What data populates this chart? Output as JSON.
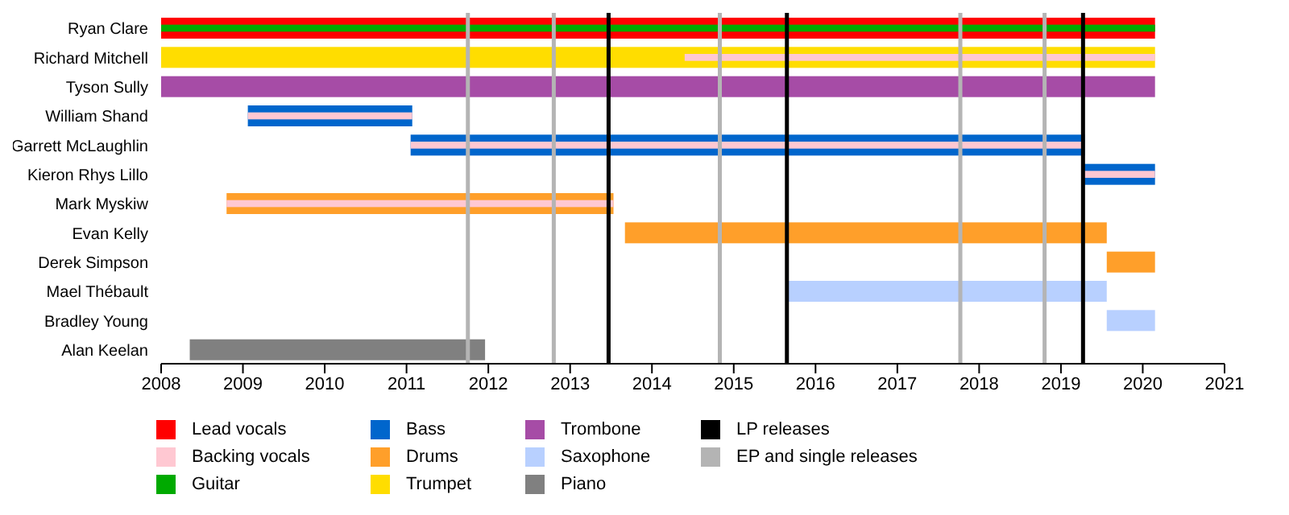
{
  "chart_data": {
    "type": "bar",
    "orientation": "horizontal",
    "categories": [
      "Ryan Clare",
      "Richard Mitchell",
      "Tyson Sully",
      "William Shand",
      "Garrett McLaughlin",
      "Kieron Rhys Lillo",
      "Mark Myskiw",
      "Evan Kelly",
      "Derek Simpson",
      "Mael Thébault",
      "Bradley Young",
      "Alan Keelan"
    ],
    "xlim": [
      2008,
      2021
    ],
    "xticks": [
      2008,
      2009,
      2010,
      2011,
      2012,
      2013,
      2014,
      2015,
      2016,
      2017,
      2018,
      2019,
      2020,
      2021
    ],
    "grid": false,
    "legend": "bottom",
    "series": [
      {
        "name": "Lead vocals",
        "color": "#ff0000",
        "base": [
          2008,
          null,
          null,
          null,
          null,
          null,
          null,
          null,
          null,
          null,
          null,
          null
        ],
        "values": [
          12.15,
          null,
          null,
          null,
          null,
          null,
          null,
          null,
          null,
          null,
          null,
          null
        ]
      },
      {
        "name": "Backing vocals",
        "color": "#ffc8d2",
        "base": [
          null,
          2014.4,
          null,
          2009.06,
          2011.05,
          2019.27,
          2008.8,
          null,
          null,
          null,
          null,
          null
        ],
        "values": [
          null,
          5.75,
          null,
          2.01,
          8.24,
          0.88,
          4.73,
          null,
          null,
          null,
          null,
          null
        ]
      },
      {
        "name": "Guitar",
        "color": "#00aa00",
        "base": [
          2008,
          null,
          null,
          null,
          null,
          null,
          null,
          null,
          null,
          null,
          null,
          null
        ],
        "values": [
          12.15,
          null,
          null,
          null,
          null,
          null,
          null,
          null,
          null,
          null,
          null,
          null
        ]
      },
      {
        "name": "Bass",
        "color": "#0066cc",
        "base": [
          null,
          null,
          null,
          2009.06,
          2011.05,
          2019.27,
          null,
          null,
          null,
          null,
          null,
          null
        ],
        "values": [
          null,
          null,
          null,
          2.01,
          8.24,
          0.88,
          null,
          null,
          null,
          null,
          null,
          null
        ]
      },
      {
        "name": "Drums",
        "color": "#ff9f2a",
        "base": [
          null,
          null,
          null,
          null,
          null,
          null,
          2008.8,
          2013.67,
          2019.56,
          null,
          null,
          null
        ],
        "values": [
          null,
          null,
          null,
          null,
          null,
          null,
          4.73,
          5.89,
          0.59,
          null,
          null,
          null
        ]
      },
      {
        "name": "Trumpet",
        "color": "#ffdd00",
        "base": [
          null,
          2008,
          null,
          null,
          null,
          null,
          null,
          null,
          null,
          null,
          null,
          null
        ],
        "values": [
          null,
          12.15,
          null,
          null,
          null,
          null,
          null,
          null,
          null,
          null,
          null,
          null
        ]
      },
      {
        "name": "Trombone",
        "color": "#a64ca6",
        "base": [
          null,
          null,
          2008,
          null,
          null,
          null,
          null,
          null,
          null,
          null,
          null,
          null
        ],
        "values": [
          null,
          null,
          12.15,
          null,
          null,
          null,
          null,
          null,
          null,
          null,
          null,
          null
        ]
      },
      {
        "name": "Saxophone",
        "color": "#b8d0ff",
        "base": [
          null,
          null,
          null,
          null,
          null,
          null,
          null,
          null,
          null,
          2015.65,
          2019.56,
          null
        ],
        "values": [
          null,
          null,
          null,
          null,
          null,
          null,
          null,
          null,
          null,
          3.91,
          0.59,
          null
        ]
      },
      {
        "name": "Piano",
        "color": "#808080",
        "base": [
          null,
          null,
          null,
          null,
          null,
          null,
          null,
          null,
          null,
          null,
          null,
          2008.35
        ],
        "values": [
          null,
          null,
          null,
          null,
          null,
          null,
          null,
          null,
          null,
          null,
          null,
          3.61
        ]
      }
    ],
    "ref_lines": [
      {
        "axis": "x",
        "value": 2013.47,
        "label": "LP releases",
        "color": "#000000"
      },
      {
        "axis": "x",
        "value": 2015.65,
        "color": "#000000"
      },
      {
        "axis": "x",
        "value": 2019.27,
        "color": "#000000"
      },
      {
        "axis": "x",
        "value": 2011.75,
        "label": "EP and single releases",
        "color": "#b4b4b4"
      },
      {
        "axis": "x",
        "value": 2012.8,
        "color": "#b4b4b4"
      },
      {
        "axis": "x",
        "value": 2014.83,
        "color": "#b4b4b4"
      },
      {
        "axis": "x",
        "value": 2017.77,
        "color": "#b4b4b4"
      },
      {
        "axis": "x",
        "value": 2018.8,
        "color": "#b4b4b4"
      }
    ]
  }
}
